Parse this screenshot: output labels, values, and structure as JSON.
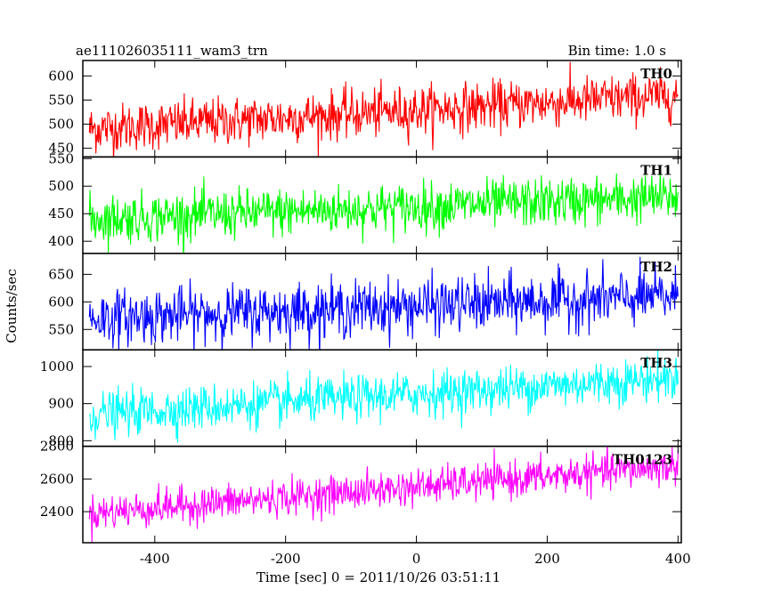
{
  "header": {
    "title": "ae111026035111_wam3_trn",
    "bin_time": "Bin time: 1.0 s"
  },
  "chart_data": {
    "type": "line",
    "title": "ae111026035111_wam3_trn",
    "xlabel": "Time [sec] 0 = 2011/10/26 03:51:11",
    "ylabel": "Counts/sec",
    "xlim": [
      -510,
      405
    ],
    "x_ticks": [
      -400,
      -200,
      0,
      200,
      400
    ],
    "x_start": -500,
    "x_end": 400,
    "bin": 1.0,
    "grid": false,
    "panels": [
      {
        "name": "TH0",
        "color": "#ff0000",
        "ylim": [
          432,
          632
        ],
        "yticks": [
          450,
          500,
          550,
          600
        ],
        "trend_start": 490,
        "trend_end": 560,
        "noise_sd": 25
      },
      {
        "name": "TH1",
        "color": "#00ff00",
        "ylim": [
          378,
          553
        ],
        "yticks": [
          400,
          450,
          500,
          550
        ],
        "trend_start": 440,
        "trend_end": 480,
        "noise_sd": 22
      },
      {
        "name": "TH2",
        "color": "#0000ff",
        "ylim": [
          513,
          688
        ],
        "yticks": [
          550,
          600,
          650
        ],
        "trend_start": 570,
        "trend_end": 610,
        "noise_sd": 25
      },
      {
        "name": "TH3",
        "color": "#00ffff",
        "ylim": [
          785,
          1045
        ],
        "yticks": [
          800,
          900,
          1000
        ],
        "trend_start": 870,
        "trend_end": 970,
        "noise_sd": 30
      },
      {
        "name": "TH0123",
        "color": "#ff00ff",
        "ylim": [
          2210,
          2800
        ],
        "yticks": [
          2400,
          2600,
          2800
        ],
        "trend_start": 2390,
        "trend_end": 2680,
        "noise_sd": 55
      }
    ]
  }
}
